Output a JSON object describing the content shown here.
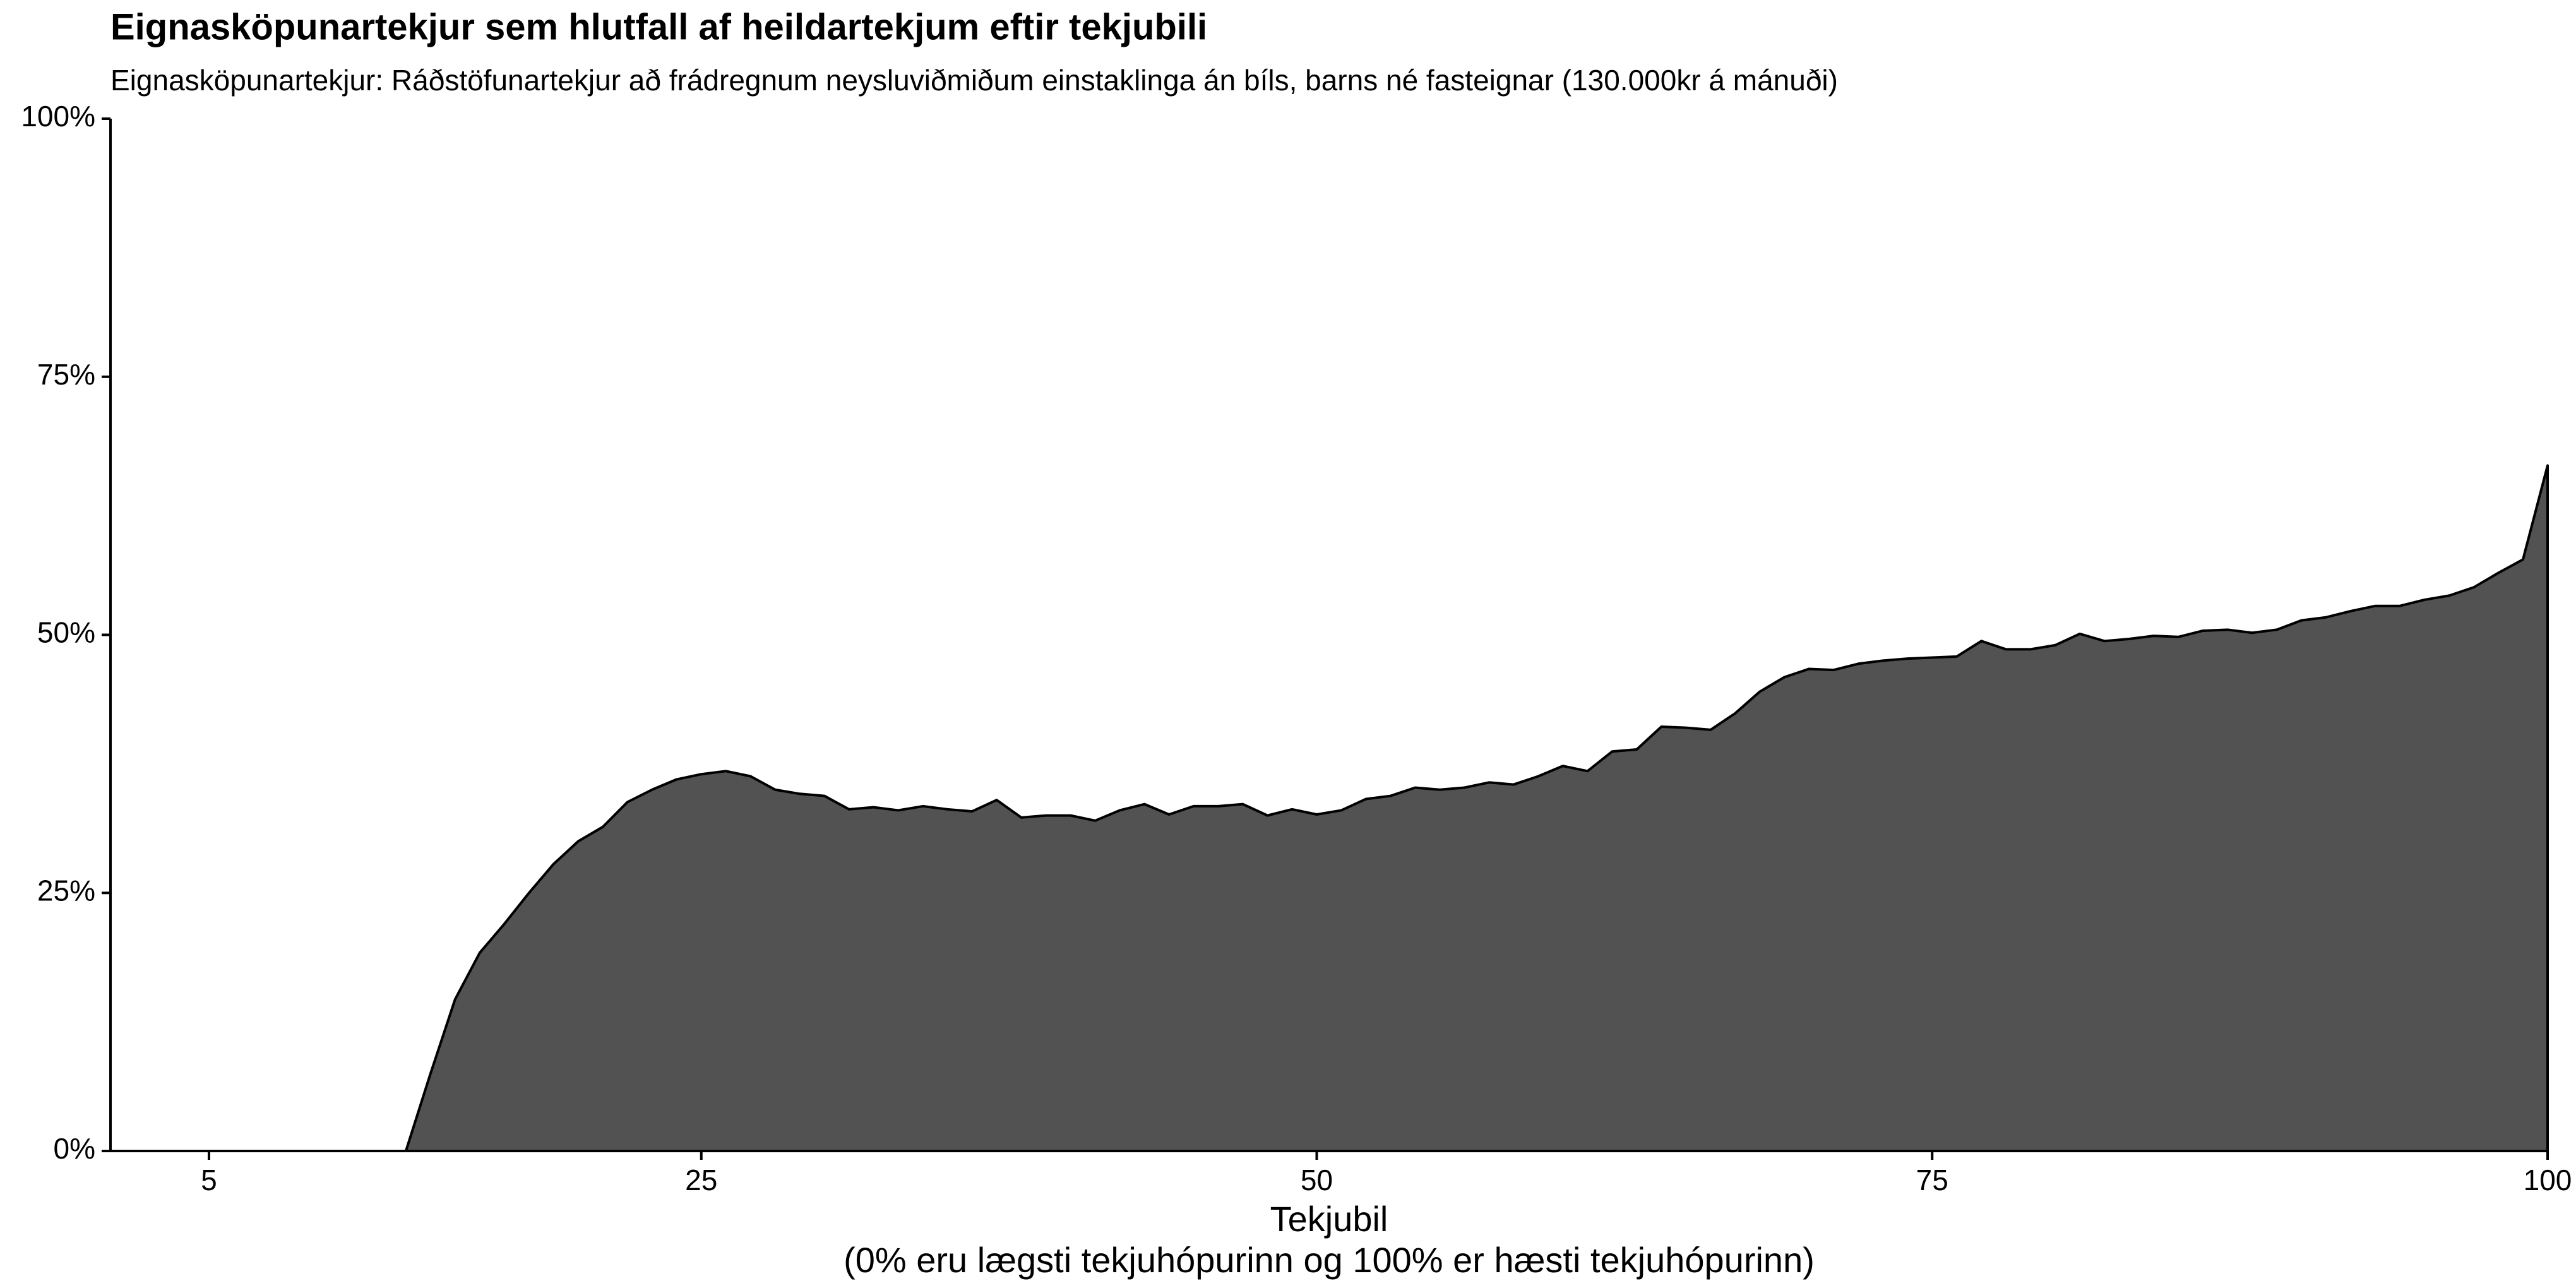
{
  "chart_data": {
    "type": "area",
    "title": "Eignasköpunartekjur sem hlutfall af heildartekjum eftir tekjubili",
    "subtitle": "Eignasköpunartekjur: Ráðstöfunartekjur að frádregnum neysluviðmiðum einstaklinga án bíls, barns né fasteignar (130.000kr á mánuði)",
    "x_label": [
      "Tekjubil",
      "(0% eru lægsti tekjuhópurinn og 100% er hæsti tekjuhópurinn)"
    ],
    "x": [
      1,
      2,
      3,
      4,
      5,
      6,
      7,
      8,
      9,
      10,
      11,
      12,
      13,
      14,
      15,
      16,
      17,
      18,
      19,
      20,
      21,
      22,
      23,
      24,
      25,
      26,
      27,
      28,
      29,
      30,
      31,
      32,
      33,
      34,
      35,
      36,
      37,
      38,
      39,
      40,
      41,
      42,
      43,
      44,
      45,
      46,
      47,
      48,
      49,
      50,
      51,
      52,
      53,
      54,
      55,
      56,
      57,
      58,
      59,
      60,
      61,
      62,
      63,
      64,
      65,
      66,
      67,
      68,
      69,
      70,
      71,
      72,
      73,
      74,
      75,
      76,
      77,
      78,
      79,
      80,
      81,
      82,
      83,
      84,
      85,
      86,
      87,
      88,
      89,
      90,
      91,
      92,
      93,
      94,
      95,
      96,
      97,
      98,
      99,
      100
    ],
    "series": [
      {
        "color": "#525252",
        "values": [
          0,
          0,
          0,
          0,
          0,
          0,
          0,
          0,
          0,
          0,
          0,
          0,
          0,
          7.5,
          14.7,
          19.2,
          22,
          25,
          27.8,
          30,
          31.4,
          33.8,
          35,
          36,
          36.5,
          36.8,
          36.3,
          35,
          34.6,
          34.4,
          33.1,
          33.3,
          33,
          33.4,
          33.1,
          32.9,
          34,
          32.3,
          32.5,
          32.5,
          32,
          33,
          33.6,
          32.6,
          33.4,
          33.4,
          33.6,
          32.5,
          33.1,
          32.6,
          33,
          34.1,
          34.4,
          35.2,
          35,
          35.2,
          35.7,
          35.5,
          36.3,
          37.3,
          36.8,
          38.7,
          38.9,
          41.1,
          41,
          40.8,
          42.4,
          44.5,
          45.9,
          46.7,
          46.6,
          47.2,
          47.5,
          47.7,
          47.8,
          47.9,
          49.4,
          48.6,
          48.6,
          49,
          50.1,
          49.4,
          49.6,
          49.9,
          49.8,
          50.4,
          50.5,
          50.2,
          50.5,
          51.4,
          51.7,
          52.3,
          52.8,
          52.8,
          53.4,
          53.8,
          54.6,
          56,
          57.3,
          66.4
        ]
      }
    ],
    "xlim": [
      1,
      100
    ],
    "xticks": [
      5,
      25,
      50,
      75,
      100
    ],
    "ylim": [
      0,
      100
    ],
    "yticks": [
      {
        "value": 0,
        "label": "0%"
      },
      {
        "value": 25,
        "label": "25%"
      },
      {
        "value": 50,
        "label": "50%"
      },
      {
        "value": 75,
        "label": "75%"
      },
      {
        "value": 100,
        "label": "100%"
      }
    ]
  }
}
